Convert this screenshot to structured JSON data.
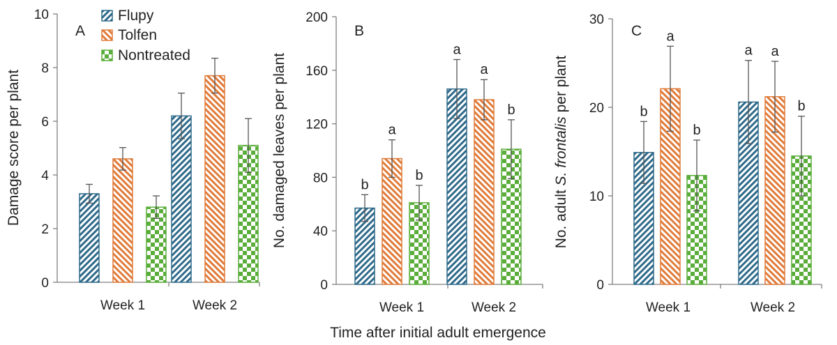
{
  "figure": {
    "xlabel": "Time after initial adult emergence",
    "legend": [
      "Flupy",
      "Tolfen",
      "Nontreated"
    ]
  },
  "colors": {
    "Flupy": "#2f6a8a",
    "Tolfen": "#e07b39",
    "Nontreated": "#5aad3a"
  },
  "patterns": {
    "Flupy": "diagonal-stripes-down",
    "Tolfen": "diagonal-stripes-up",
    "Nontreated": "checkerboard"
  },
  "chart_data": [
    {
      "type": "bar",
      "panel_label": "A",
      "ylabel": "Damage score per plant",
      "ylim": [
        0,
        10
      ],
      "yticks": [
        0,
        2,
        4,
        6,
        8,
        10
      ],
      "categories": [
        "Week 1",
        "Week 2"
      ],
      "legend_position": "top-left",
      "series": [
        {
          "name": "Flupy",
          "values": [
            3.3,
            6.2
          ],
          "errors": [
            0.35,
            0.85
          ],
          "letters": [
            "",
            ""
          ]
        },
        {
          "name": "Tolfen",
          "values": [
            4.6,
            7.7
          ],
          "errors": [
            0.42,
            0.65
          ],
          "letters": [
            "",
            ""
          ]
        },
        {
          "name": "Nontreated",
          "values": [
            2.8,
            5.1
          ],
          "errors": [
            0.42,
            1.0
          ],
          "letters": [
            "",
            ""
          ]
        }
      ]
    },
    {
      "type": "bar",
      "panel_label": "B",
      "ylabel": "No. damaged leaves per plant",
      "ylim": [
        0,
        200
      ],
      "yticks": [
        0,
        40,
        80,
        120,
        160,
        200
      ],
      "categories": [
        "Week 1",
        "Week 2"
      ],
      "series": [
        {
          "name": "Flupy",
          "values": [
            57,
            146
          ],
          "errors": [
            10,
            22
          ],
          "letters": [
            "b",
            "a"
          ]
        },
        {
          "name": "Tolfen",
          "values": [
            94,
            138
          ],
          "errors": [
            14,
            15
          ],
          "letters": [
            "a",
            "a"
          ]
        },
        {
          "name": "Nontreated",
          "values": [
            61,
            101
          ],
          "errors": [
            13,
            22
          ],
          "letters": [
            "b",
            "b"
          ]
        }
      ]
    },
    {
      "type": "bar",
      "panel_label": "C",
      "ylabel_parts": [
        "No. adult ",
        "S. frontalis",
        " per plant"
      ],
      "ylim": [
        0,
        30
      ],
      "yticks": [
        0,
        10,
        20,
        30
      ],
      "categories": [
        "Week 1",
        "Week 2"
      ],
      "series": [
        {
          "name": "Flupy",
          "values": [
            14.9,
            20.6
          ],
          "errors": [
            3.5,
            4.7
          ],
          "letters": [
            "b",
            "a"
          ]
        },
        {
          "name": "Tolfen",
          "values": [
            22.1,
            21.2
          ],
          "errors": [
            4.8,
            4.0
          ],
          "letters": [
            "a",
            "a"
          ]
        },
        {
          "name": "Nontreated",
          "values": [
            12.3,
            14.5
          ],
          "errors": [
            4.0,
            4.5
          ],
          "letters": [
            "b",
            "b"
          ]
        }
      ]
    }
  ]
}
